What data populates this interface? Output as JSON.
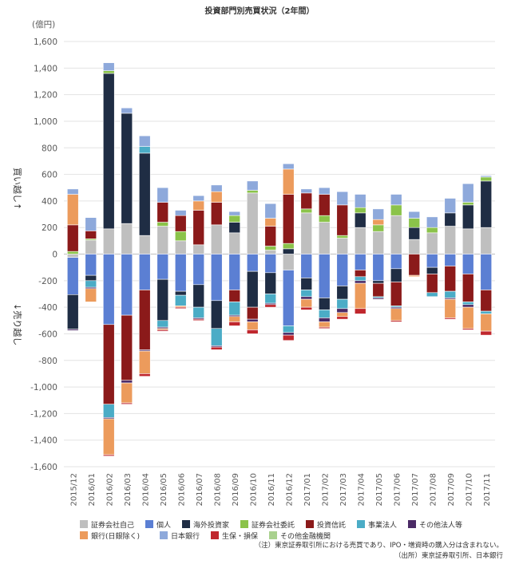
{
  "chart_data": {
    "type": "bar",
    "stacked": true,
    "title": "投資部門別売買状況（2年間）",
    "unit_label": "(億円)",
    "ylim": [
      -1600,
      1600
    ],
    "y_ticks": [
      1600,
      1400,
      1200,
      1000,
      800,
      600,
      400,
      200,
      0,
      -200,
      -400,
      -600,
      -800,
      -1000,
      -1200,
      -1400,
      -1600
    ],
    "y_tick_labels": [
      "1,600",
      "1,400",
      "1,200",
      "1,000",
      "800",
      "600",
      "400",
      "200",
      "0",
      "-200",
      "-400",
      "-600",
      "-800",
      "-1,000",
      "-1,200",
      "-1,400",
      "-1,600"
    ],
    "buy_label": "買い越し↑",
    "sell_label": "↓売り越し",
    "grid": true,
    "legend_position": "bottom",
    "categories": [
      "2015/12",
      "2016/01",
      "2016/02",
      "2016/03",
      "2016/04",
      "2016/05",
      "2016/06",
      "2016/07",
      "2016/08",
      "2016/09",
      "2016/10",
      "2016/11",
      "2016/12",
      "2017/01",
      "2017/02",
      "2017/03",
      "2017/04",
      "2017/05",
      "2017/06",
      "2017/07",
      "2017/08",
      "2017/09",
      "2017/10",
      "2017/11"
    ],
    "series": [
      {
        "name": "証券会社自己",
        "color": "#bfbfbf",
        "values": [
          -25,
          105,
          190,
          230,
          140,
          210,
          100,
          70,
          220,
          160,
          460,
          30,
          -120,
          310,
          240,
          120,
          200,
          170,
          290,
          110,
          160,
          210,
          190,
          200
        ]
      },
      {
        "name": "個人",
        "color": "#5b7fd3",
        "values": [
          -280,
          -160,
          -530,
          -460,
          -270,
          -190,
          -280,
          -230,
          -350,
          -270,
          -130,
          -140,
          -420,
          -180,
          -330,
          -240,
          -120,
          -200,
          -110,
          0,
          -100,
          -90,
          -150,
          -270
        ]
      },
      {
        "name": "海外投資家",
        "color": "#1f2d44",
        "values": [
          -260,
          -40,
          1170,
          830,
          620,
          -310,
          -30,
          -170,
          -210,
          80,
          -270,
          -160,
          40,
          -90,
          -90,
          -100,
          110,
          -20,
          -100,
          90,
          -50,
          100,
          180,
          350
        ]
      },
      {
        "name": "証券会社委託",
        "color": "#8bc34a",
        "values": [
          20,
          10,
          20,
          0,
          0,
          30,
          70,
          0,
          0,
          50,
          20,
          30,
          40,
          30,
          50,
          20,
          40,
          50,
          80,
          70,
          40,
          0,
          20,
          30
        ]
      },
      {
        "name": "投資信託",
        "color": "#8b1a1a",
        "values": [
          200,
          60,
          -600,
          -490,
          -450,
          150,
          120,
          260,
          170,
          -90,
          -90,
          150,
          370,
          120,
          160,
          230,
          -50,
          -100,
          -180,
          -160,
          -140,
          -190,
          -210,
          -160
        ]
      },
      {
        "name": "事業法人",
        "color": "#4bacc6",
        "values": [
          0,
          -50,
          -100,
          0,
          50,
          -50,
          -80,
          -80,
          -130,
          -100,
          0,
          -70,
          -50,
          -50,
          -60,
          -70,
          -30,
          -10,
          -10,
          0,
          -30,
          -50,
          -20,
          -20
        ]
      },
      {
        "name": "その他法人等",
        "color": "#4b2a66",
        "values": [
          -10,
          -10,
          -10,
          -20,
          -10,
          -10,
          0,
          -10,
          -10,
          -10,
          -20,
          -10,
          -20,
          -20,
          -30,
          -30,
          -20,
          -10,
          -10,
          0,
          0,
          -10,
          -20,
          0
        ]
      },
      {
        "name": "銀行(日銀除く)",
        "color": "#ec9b5c",
        "values": [
          230,
          -100,
          -270,
          -150,
          -170,
          -10,
          -10,
          70,
          80,
          -40,
          -60,
          60,
          190,
          -60,
          -40,
          -30,
          -190,
          40,
          -90,
          -10,
          0,
          -140,
          -160,
          -130
        ]
      },
      {
        "name": "日本銀行",
        "color": "#8ea9db",
        "values": [
          40,
          100,
          60,
          40,
          80,
          110,
          40,
          40,
          50,
          30,
          70,
          110,
          40,
          30,
          50,
          100,
          100,
          80,
          80,
          50,
          80,
          110,
          140,
          10
        ]
      },
      {
        "name": "生保・損保",
        "color": "#c0272d",
        "values": [
          0,
          0,
          -10,
          -10,
          -20,
          -10,
          -10,
          -10,
          -20,
          -30,
          -30,
          -20,
          -40,
          -20,
          -10,
          -20,
          -40,
          0,
          -10,
          0,
          0,
          -10,
          -10,
          -30
        ]
      },
      {
        "name": "その他金融機関",
        "color": "#a9d18e",
        "values": [
          0,
          0,
          0,
          0,
          0,
          0,
          0,
          0,
          0,
          0,
          0,
          0,
          0,
          0,
          0,
          0,
          0,
          0,
          0,
          0,
          0,
          0,
          0,
          0
        ]
      }
    ]
  },
  "legend": {
    "row1": [
      "証券会社自己",
      "個人",
      "海外投資家",
      "証券会社委託",
      "投資信託",
      "事業法人",
      "その他法人等"
    ],
    "row2": [
      "銀行(日銀除く)",
      "日本銀行",
      "生保・損保",
      "その他金融機関"
    ]
  },
  "notes": {
    "note_line": "（注）東京証券取引所における売買であり、IPO・増資時の購入分は含まれない。",
    "source_line": "（出所）東京証券取引所、日本銀行"
  }
}
